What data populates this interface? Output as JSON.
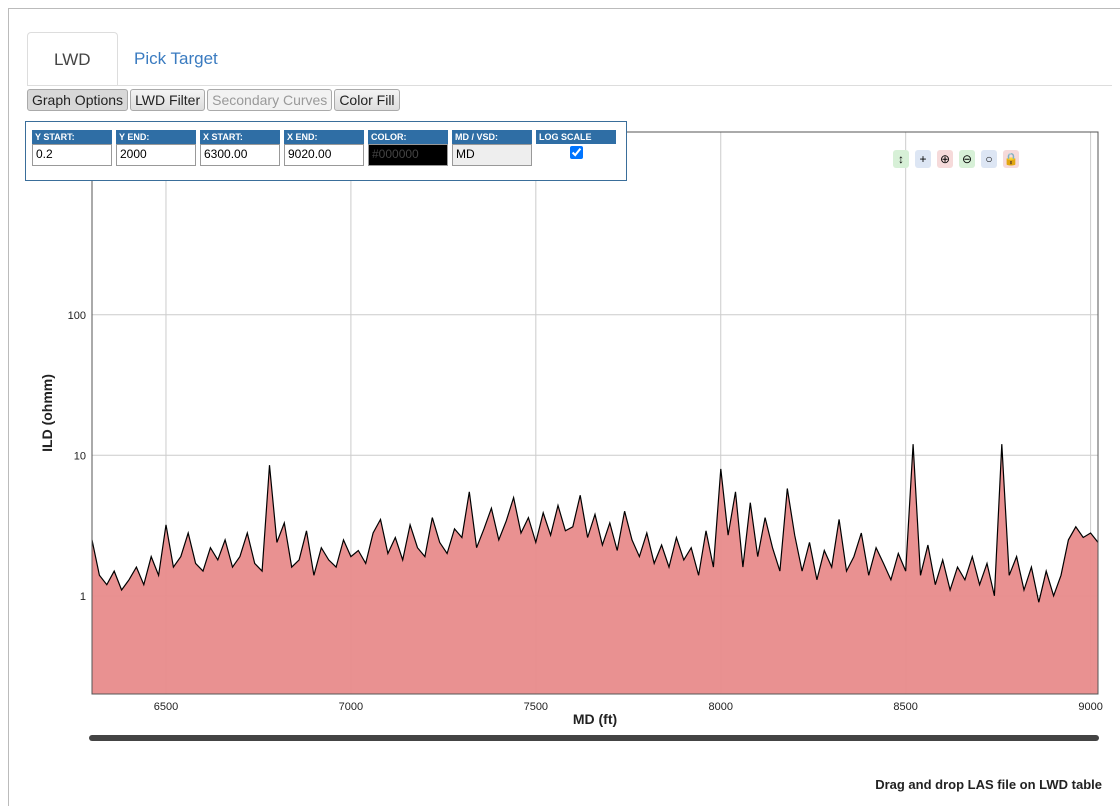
{
  "tabs": [
    "LWD",
    "Pick Target"
  ],
  "buttons": [
    "Graph Options",
    "LWD Filter",
    "Secondary Curves",
    "Color Fill"
  ],
  "options": [
    {
      "label": "Y START:",
      "value": "0.2"
    },
    {
      "label": "Y END:",
      "value": "2000"
    },
    {
      "label": "X START:",
      "value": "6300.00"
    },
    {
      "label": "X END:",
      "value": "9020.00"
    },
    {
      "label": "COLOR:",
      "value": "#000000"
    },
    {
      "label": "MD / VSD:",
      "value": "MD"
    },
    {
      "label": "LOG SCALE"
    }
  ],
  "footer": "Drag and drop LAS file on LWD table",
  "chart_data": {
    "type": "area",
    "xlabel": "MD (ft)",
    "ylabel": "ILD (ohmm)",
    "log_y": true,
    "grid": true,
    "color": "#e88b8b",
    "line_color": "#000000",
    "xlim": [
      6300,
      9020
    ],
    "ylim": [
      0.2,
      2000
    ],
    "xticks": [
      6500,
      7000,
      7500,
      8000,
      8500,
      9000
    ],
    "yticks": [
      1,
      10,
      100
    ],
    "x": [
      6300,
      6320,
      6340,
      6360,
      6380,
      6400,
      6420,
      6440,
      6460,
      6480,
      6500,
      6520,
      6540,
      6560,
      6580,
      6600,
      6620,
      6640,
      6660,
      6680,
      6700,
      6720,
      6740,
      6760,
      6780,
      6800,
      6820,
      6840,
      6860,
      6880,
      6900,
      6920,
      6940,
      6960,
      6980,
      7000,
      7020,
      7040,
      7060,
      7080,
      7100,
      7120,
      7140,
      7160,
      7180,
      7200,
      7220,
      7240,
      7260,
      7280,
      7300,
      7320,
      7340,
      7360,
      7380,
      7400,
      7420,
      7440,
      7460,
      7480,
      7500,
      7520,
      7540,
      7560,
      7580,
      7600,
      7620,
      7640,
      7660,
      7680,
      7700,
      7720,
      7740,
      7760,
      7780,
      7800,
      7820,
      7840,
      7860,
      7880,
      7900,
      7920,
      7940,
      7960,
      7980,
      8000,
      8020,
      8040,
      8060,
      8080,
      8100,
      8120,
      8140,
      8160,
      8180,
      8200,
      8220,
      8240,
      8260,
      8280,
      8300,
      8320,
      8340,
      8360,
      8380,
      8400,
      8420,
      8440,
      8460,
      8480,
      8500,
      8520,
      8540,
      8560,
      8580,
      8600,
      8620,
      8640,
      8660,
      8680,
      8700,
      8720,
      8740,
      8760,
      8780,
      8800,
      8820,
      8840,
      8860,
      8880,
      8900,
      8920,
      8940,
      8960,
      8980,
      9000,
      9020
    ],
    "values": [
      2.5,
      1.4,
      1.2,
      1.5,
      1.1,
      1.3,
      1.6,
      1.2,
      1.9,
      1.4,
      3.2,
      1.6,
      1.9,
      2.8,
      1.7,
      1.5,
      2.2,
      1.8,
      2.5,
      1.6,
      1.9,
      2.8,
      1.7,
      1.5,
      8.5,
      2.4,
      3.3,
      1.6,
      1.8,
      2.9,
      1.4,
      2.2,
      1.8,
      1.6,
      2.5,
      1.9,
      2.1,
      1.7,
      2.8,
      3.5,
      2.0,
      2.6,
      1.8,
      3.2,
      2.2,
      1.9,
      3.6,
      2.4,
      2.0,
      3.0,
      2.6,
      5.5,
      2.2,
      3.0,
      4.2,
      2.5,
      3.4,
      5.0,
      2.8,
      3.6,
      2.4,
      3.9,
      2.7,
      4.4,
      2.9,
      3.1,
      5.2,
      2.6,
      3.8,
      2.3,
      3.3,
      2.1,
      4.0,
      2.5,
      1.9,
      2.8,
      1.7,
      2.3,
      1.6,
      2.6,
      1.8,
      2.2,
      1.4,
      2.9,
      1.6,
      8.0,
      2.7,
      5.5,
      1.6,
      4.6,
      1.9,
      3.6,
      2.2,
      1.5,
      5.8,
      2.7,
      1.5,
      2.4,
      1.3,
      2.1,
      1.6,
      3.5,
      1.5,
      1.9,
      2.8,
      1.4,
      2.2,
      1.7,
      1.3,
      2.0,
      1.5,
      12,
      1.4,
      2.3,
      1.2,
      1.8,
      1.1,
      1.6,
      1.3,
      1.9,
      1.2,
      1.7,
      1.0,
      12,
      1.4,
      1.9,
      1.1,
      1.6,
      0.9,
      1.5,
      1.0,
      1.4,
      2.5,
      3.1,
      2.6,
      2.8,
      2.4
    ]
  }
}
